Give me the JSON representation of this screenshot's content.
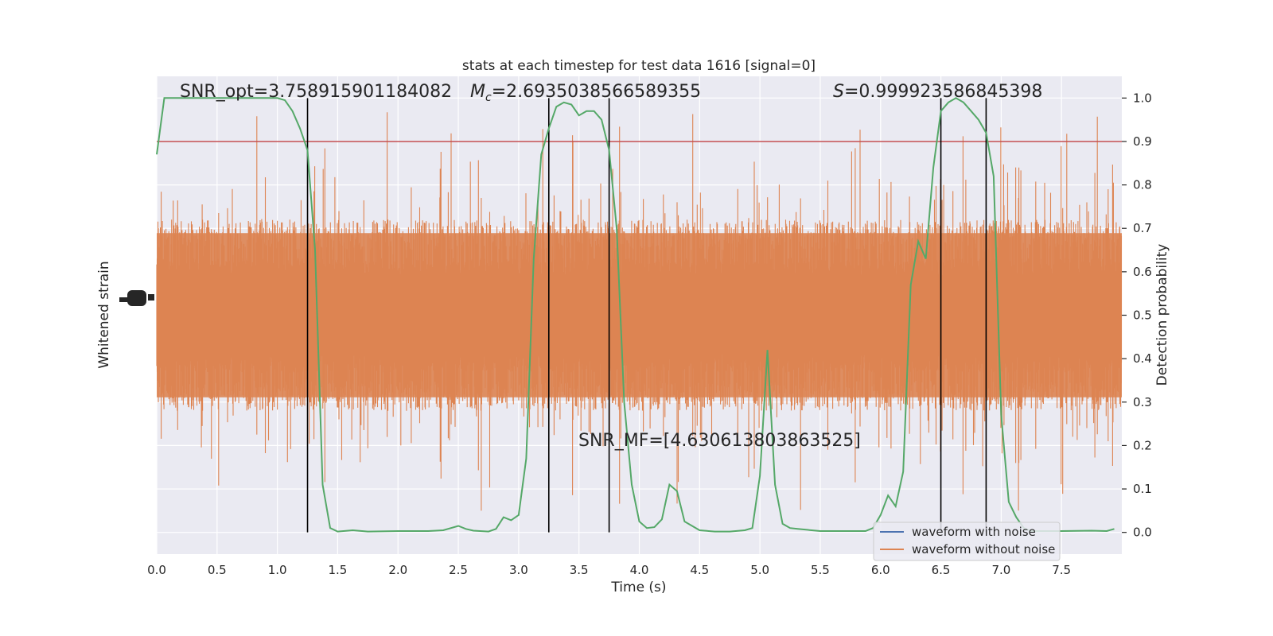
{
  "chart_data": {
    "type": "line",
    "title": "stats at each timestep for test data 1616 [signal=0]",
    "xlabel": "Time (s)",
    "ylabel_left": "Whitened strain",
    "ylabel_right": "Detection probability",
    "xlim": [
      0,
      8.0
    ],
    "ylim_right": [
      -0.05,
      1.05
    ],
    "grid": true,
    "x_ticks": [
      "0.0",
      "0.5",
      "1.0",
      "1.5",
      "2.0",
      "2.5",
      "3.0",
      "3.5",
      "4.0",
      "4.5",
      "5.0",
      "5.5",
      "6.0",
      "6.5",
      "7.0",
      "7.5"
    ],
    "y_right_ticks": [
      "0.0",
      "0.1",
      "0.2",
      "0.3",
      "0.4",
      "0.5",
      "0.6",
      "0.7",
      "0.8",
      "0.9",
      "1.0"
    ],
    "annotations": {
      "snr_opt": "SNR_opt=3.758915901184082",
      "mc_symbol": "M",
      "mc_sub": "c",
      "mc_value": "=2.6935038566589355",
      "s_symbol": "S",
      "s_value": "=0.999923586845398",
      "snr_mf": "SNR_MF=[4.630613803863525]"
    },
    "threshold": 0.9,
    "vertical_lines": [
      1.25,
      3.25,
      3.75,
      6.5,
      6.875
    ],
    "legend": {
      "placement": "lower-right",
      "entries": [
        {
          "label": "waveform with noise",
          "color": "#4c72b0"
        },
        {
          "label": "waveform without noise",
          "color": "#dd8452"
        }
      ]
    },
    "series": [
      {
        "name": "waveform without noise",
        "color": "#dd8452",
        "kind": "noise-band",
        "center": 0.5,
        "band": [
          0.3,
          0.7
        ],
        "extremes": [
          0.0,
          0.97
        ]
      },
      {
        "name": "detection probability",
        "color": "#55a868",
        "x": [
          0.0,
          0.0625,
          0.125,
          0.25,
          0.5,
          0.75,
          1.0,
          1.0625,
          1.125,
          1.1875,
          1.25,
          1.3125,
          1.375,
          1.4375,
          1.5,
          1.625,
          1.75,
          2.0,
          2.25,
          2.375,
          2.5,
          2.5625,
          2.625,
          2.75,
          2.8125,
          2.875,
          2.9375,
          3.0,
          3.0625,
          3.125,
          3.1875,
          3.25,
          3.3125,
          3.375,
          3.4375,
          3.5,
          3.5625,
          3.625,
          3.6875,
          3.75,
          3.8125,
          3.875,
          3.9375,
          4.0,
          4.0625,
          4.125,
          4.1875,
          4.25,
          4.3125,
          4.375,
          4.5,
          4.625,
          4.75,
          4.875,
          4.9375,
          5.0,
          5.0625,
          5.125,
          5.1875,
          5.25,
          5.3125,
          5.5,
          5.75,
          5.875,
          5.9375,
          6.0,
          6.0625,
          6.125,
          6.1875,
          6.25,
          6.3125,
          6.375,
          6.4375,
          6.5,
          6.5625,
          6.625,
          6.6875,
          6.75,
          6.8125,
          6.875,
          6.9375,
          7.0,
          7.0625,
          7.125,
          7.1875,
          7.25,
          7.5,
          7.75,
          7.875,
          7.9375
        ],
        "y": [
          0.87,
          1.0,
          1.0,
          1.0,
          1.0,
          1.0,
          1.0,
          0.995,
          0.97,
          0.93,
          0.88,
          0.65,
          0.11,
          0.01,
          0.002,
          0.005,
          0.002,
          0.003,
          0.003,
          0.005,
          0.015,
          0.008,
          0.004,
          0.002,
          0.008,
          0.035,
          0.028,
          0.04,
          0.17,
          0.63,
          0.87,
          0.93,
          0.98,
          0.99,
          0.985,
          0.96,
          0.97,
          0.97,
          0.95,
          0.88,
          0.7,
          0.3,
          0.11,
          0.025,
          0.01,
          0.012,
          0.03,
          0.11,
          0.095,
          0.025,
          0.005,
          0.002,
          0.002,
          0.005,
          0.01,
          0.13,
          0.42,
          0.11,
          0.02,
          0.01,
          0.008,
          0.003,
          0.003,
          0.003,
          0.01,
          0.04,
          0.085,
          0.06,
          0.14,
          0.57,
          0.67,
          0.63,
          0.84,
          0.97,
          0.99,
          1.0,
          0.99,
          0.97,
          0.95,
          0.92,
          0.82,
          0.27,
          0.07,
          0.035,
          0.01,
          0.003,
          0.003,
          0.004,
          0.003,
          0.008
        ]
      }
    ]
  }
}
